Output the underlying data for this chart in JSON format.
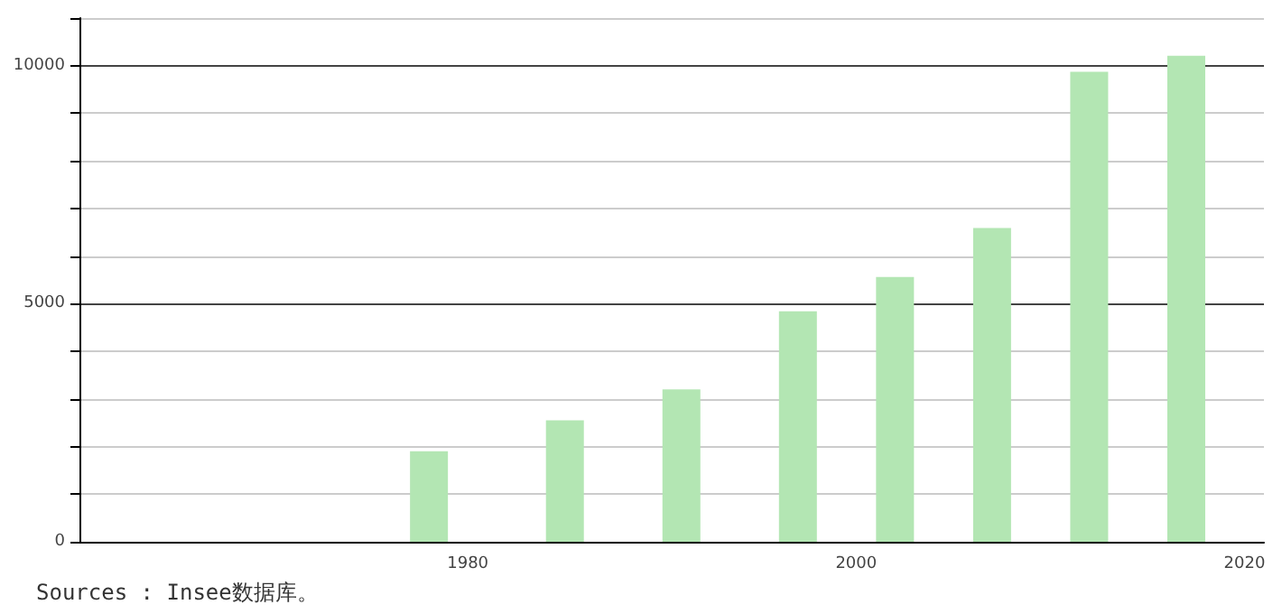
{
  "chart_data": {
    "type": "bar",
    "x": [
      1978,
      1985,
      1991,
      1997,
      2002,
      2007,
      2012,
      2017
    ],
    "values": [
      1900,
      2550,
      3200,
      4840,
      5560,
      6590,
      9870,
      10210
    ],
    "color": "#b3e6b3",
    "xlim": [
      1960,
      2021
    ],
    "xticks": [
      1980,
      2000,
      2020
    ],
    "ylim": [
      0,
      11000
    ],
    "yticks": [
      0,
      {
        "value": 1000,
        "label": null
      },
      {
        "value": 2000,
        "label": null
      },
      {
        "value": 3000,
        "label": null
      },
      {
        "value": 4000,
        "label": null
      },
      5000,
      {
        "value": 6000,
        "label": null
      },
      {
        "value": 7000,
        "label": null
      },
      {
        "value": 8000,
        "label": null
      },
      {
        "value": 9000,
        "label": null
      },
      10000,
      {
        "value": 11000,
        "label": null
      }
    ],
    "grid": "y",
    "annotations": [
      "Sources : Insee数据库。"
    ]
  }
}
